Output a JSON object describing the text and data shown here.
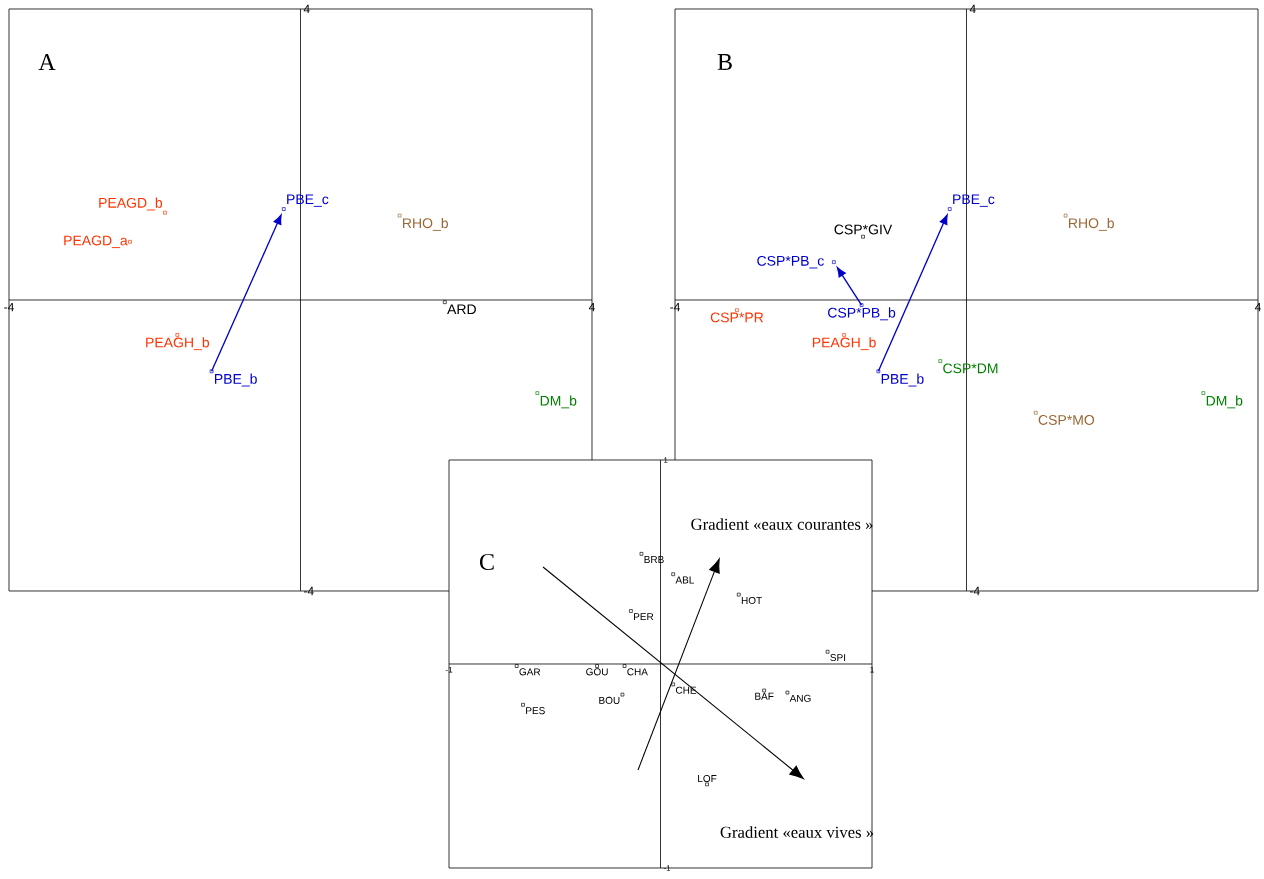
{
  "chart_data": [
    {
      "type": "scatter",
      "title": "A",
      "xlim": [
        -4,
        4
      ],
      "ylim": [
        -4,
        4
      ],
      "xticks": [
        -4,
        4
      ],
      "yticks": [
        -4,
        4
      ],
      "marker": "square",
      "series": [
        {
          "name": "PEAGD_b",
          "color": "#ff3300",
          "x": [
            -1.86
          ],
          "values": [
            1.2
          ]
        },
        {
          "name": "PEAGD_a",
          "color": "#ff3300",
          "x": [
            -2.34
          ],
          "values": [
            0.8
          ]
        },
        {
          "name": "PBE_c",
          "color": "#0000cc",
          "x": [
            -0.23
          ],
          "values": [
            1.25
          ]
        },
        {
          "name": "RHO_b",
          "color": "#996633",
          "x": [
            1.36
          ],
          "values": [
            1.16
          ]
        },
        {
          "name": "ARD",
          "color": "#000000",
          "x": [
            1.98
          ],
          "values": [
            -0.03
          ]
        },
        {
          "name": "PEAGH_b",
          "color": "#ff3300",
          "x": [
            -1.69
          ],
          "values": [
            -0.48
          ]
        },
        {
          "name": "PBE_b",
          "color": "#0000cc",
          "x": [
            -1.22
          ],
          "values": [
            -0.98
          ]
        },
        {
          "name": "DM_b",
          "color": "#008000",
          "x": [
            3.25
          ],
          "values": [
            -1.28
          ]
        }
      ]
    },
    {
      "type": "scatter",
      "title": "B",
      "xlim": [
        -4,
        4
      ],
      "ylim": [
        -4,
        4
      ],
      "xticks": [
        -4,
        4
      ],
      "yticks": [
        -4,
        4
      ],
      "marker": "square",
      "series": [
        {
          "name": "PBE_c",
          "color": "#0000cc",
          "x": [
            -0.23
          ],
          "values": [
            1.25
          ]
        },
        {
          "name": "RHO_b",
          "color": "#996633",
          "x": [
            1.36
          ],
          "values": [
            1.16
          ]
        },
        {
          "name": "CSP*GIV",
          "color": "#000000",
          "x": [
            -1.42
          ],
          "values": [
            0.87
          ]
        },
        {
          "name": "CSP*PB_c",
          "color": "#0000cc",
          "x": [
            -1.82
          ],
          "values": [
            0.52
          ]
        },
        {
          "name": "CSP*PB_b",
          "color": "#0000cc",
          "x": [
            -1.44
          ],
          "values": [
            -0.07
          ]
        },
        {
          "name": "CSP*PR",
          "color": "#ff3300",
          "x": [
            -3.15
          ],
          "values": [
            -0.14
          ]
        },
        {
          "name": "PEAGH_b",
          "color": "#ff3300",
          "x": [
            -1.68
          ],
          "values": [
            -0.48
          ]
        },
        {
          "name": "PBE_b",
          "color": "#0000cc",
          "x": [
            -1.21
          ],
          "values": [
            -0.98
          ]
        },
        {
          "name": "CSP*DM",
          "color": "#008000",
          "x": [
            -0.36
          ],
          "values": [
            -0.84
          ]
        },
        {
          "name": "CSP*MO",
          "color": "#996633",
          "x": [
            0.95
          ],
          "values": [
            -1.55
          ]
        },
        {
          "name": "DM_b",
          "color": "#008000",
          "x": [
            3.25
          ],
          "values": [
            -1.28
          ]
        }
      ]
    },
    {
      "type": "scatter",
      "title": "C",
      "xlim": [
        -1,
        1
      ],
      "ylim": [
        -1,
        1
      ],
      "xticks": [
        -1,
        1
      ],
      "yticks": [
        -1,
        1
      ],
      "marker": "square",
      "annotations": [
        "Gradient «eaux courantes »",
        "Gradient «eaux vives »"
      ],
      "series": [
        {
          "name": "BRB",
          "color": "#000000",
          "x": [
            -0.09
          ],
          "values": [
            0.54
          ]
        },
        {
          "name": "ABL",
          "color": "#000000",
          "x": [
            0.06
          ],
          "values": [
            0.44
          ]
        },
        {
          "name": "PER",
          "color": "#000000",
          "x": [
            -0.14
          ],
          "values": [
            0.26
          ]
        },
        {
          "name": "HOT",
          "color": "#000000",
          "x": [
            0.37
          ],
          "values": [
            0.34
          ]
        },
        {
          "name": "SPI",
          "color": "#000000",
          "x": [
            0.79
          ],
          "values": [
            0.06
          ]
        },
        {
          "name": "GAR",
          "color": "#000000",
          "x": [
            -0.68
          ],
          "values": [
            -0.01
          ]
        },
        {
          "name": "GOU",
          "color": "#000000",
          "x": [
            -0.3
          ],
          "values": [
            -0.01
          ]
        },
        {
          "name": "CHA",
          "color": "#000000",
          "x": [
            -0.17
          ],
          "values": [
            -0.01
          ]
        },
        {
          "name": "BOU",
          "color": "#000000",
          "x": [
            -0.18
          ],
          "values": [
            -0.15
          ]
        },
        {
          "name": "PES",
          "color": "#000000",
          "x": [
            -0.65
          ],
          "values": [
            -0.2
          ]
        },
        {
          "name": "CHE",
          "color": "#000000",
          "x": [
            0.06
          ],
          "values": [
            -0.1
          ]
        },
        {
          "name": "BAF",
          "color": "#000000",
          "x": [
            0.49
          ],
          "values": [
            -0.13
          ]
        },
        {
          "name": "ANG",
          "color": "#000000",
          "x": [
            0.6
          ],
          "values": [
            -0.14
          ]
        },
        {
          "name": "LOF",
          "color": "#000000",
          "x": [
            0.22
          ],
          "values": [
            -0.59
          ]
        }
      ]
    }
  ]
}
